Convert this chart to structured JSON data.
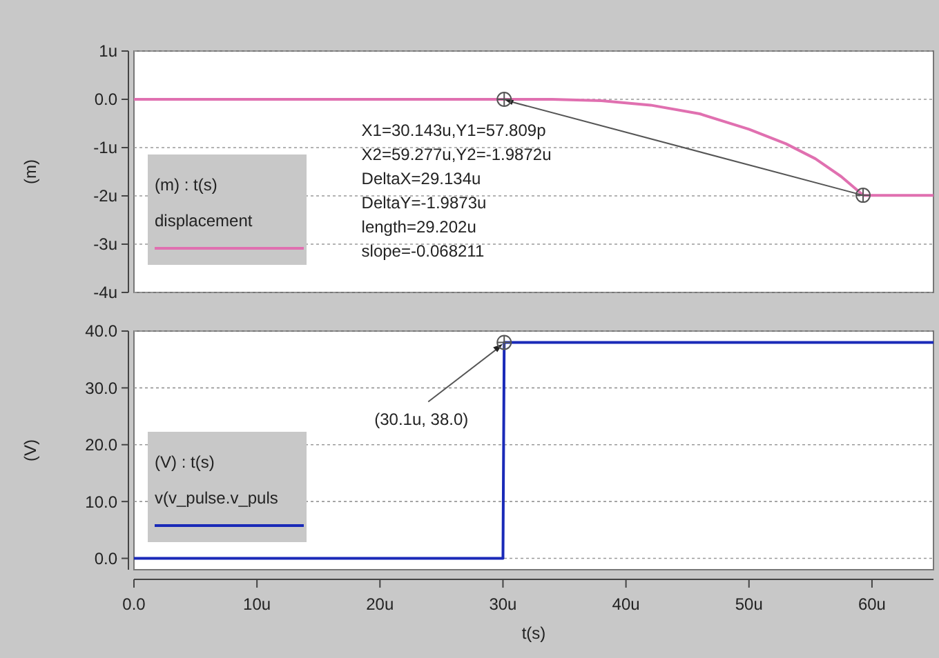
{
  "chart_data": [
    {
      "type": "line",
      "ylabel": "(m)",
      "legend_title": "(m) : t(s)",
      "legend": "bottom left",
      "grid": "y",
      "tick_labels": "y",
      "line_style": "solid",
      "marker": "none",
      "xlim": [
        0,
        65
      ],
      "ylim": [
        -4,
        1
      ],
      "yticks": [
        {
          "value": 1,
          "label": "1u"
        },
        {
          "value": 0,
          "label": "0.0"
        },
        {
          "value": -1,
          "label": "-1u"
        },
        {
          "value": -2,
          "label": "-2u"
        },
        {
          "value": -3,
          "label": "-3u"
        },
        {
          "value": -4,
          "label": "-4u"
        }
      ],
      "series": [
        {
          "name": "displacement",
          "color": "#e070b0",
          "x": [
            0,
            30.1,
            34,
            38,
            42,
            46,
            50,
            53,
            55.4,
            57.5,
            59.3,
            65
          ],
          "values": [
            0,
            0,
            0,
            -0.03,
            -0.12,
            -0.3,
            -0.62,
            -0.92,
            -1.23,
            -1.6,
            -1.99,
            -1.99
          ]
        }
      ],
      "annotations": [
        {
          "text": "X1=30.143u,Y1=57.809p\nX2=59.277u,Y2=-1.9872u\nDeltaX=29.134u\nDeltaY=-1.9873u\nlength=29.202u\nslope=-0.068211",
          "x": 59.277,
          "y": -1.9872
        }
      ]
    },
    {
      "type": "line",
      "ylabel": "(V)",
      "xlabel": "t(s)",
      "legend_title": "(V) : t(s)",
      "legend": "bottom left",
      "grid": "y",
      "line_style": "solid",
      "marker": "none",
      "xlim": [
        0,
        65
      ],
      "xticks": [
        {
          "value": 0,
          "label": "0.0"
        },
        {
          "value": 10,
          "label": "10u"
        },
        {
          "value": 20,
          "label": "20u"
        },
        {
          "value": 30,
          "label": "30u"
        },
        {
          "value": 40,
          "label": "40u"
        },
        {
          "value": 50,
          "label": "50u"
        },
        {
          "value": 60,
          "label": "60u"
        }
      ],
      "ylim": [
        -2,
        40
      ],
      "yticks": [
        {
          "value": 0,
          "label": "0.0"
        },
        {
          "value": 10,
          "label": "10.0"
        },
        {
          "value": 20,
          "label": "20.0"
        },
        {
          "value": 30,
          "label": "30.0"
        },
        {
          "value": 40,
          "label": "40.0"
        }
      ],
      "series": [
        {
          "name": "v(v_pulse.v_puls",
          "color": "#1a2ab8",
          "x": [
            0,
            30,
            30.1,
            65
          ],
          "values": [
            0,
            0,
            38,
            38
          ]
        }
      ],
      "annotations": [
        {
          "text": "(30.1u, 38.0)",
          "x": 30.1,
          "y": 38
        }
      ]
    }
  ]
}
